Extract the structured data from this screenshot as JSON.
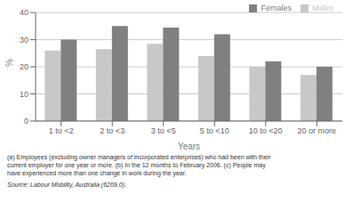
{
  "chart_data": {
    "type": "bar",
    "categories": [
      "1 to <2",
      "2 to <3",
      "3 to <5",
      "5 to <10",
      "10 to <20",
      "20 or more"
    ],
    "series": [
      {
        "name": "Males",
        "color": "#c8c8c8",
        "values": [
          26,
          26.5,
          28.5,
          24,
          20,
          17
        ]
      },
      {
        "name": "Females",
        "color": "#808080",
        "values": [
          30,
          35,
          34.5,
          32,
          22,
          20
        ]
      }
    ],
    "xlabel": "Years",
    "ylabel": "%",
    "ylim": [
      0,
      40
    ],
    "yticks": [
      0,
      10,
      20,
      30,
      40
    ],
    "grid": true,
    "legend": "upper right",
    "annotations": [
      "(a) Employees (excluding owner managers of incorporated enterprises) who had been with their",
      "current employer for one year or more. (b) In the 12 months to February 2006. (c) People may",
      "have experienced more than one change in work during the year."
    ],
    "source": "Source: Labour Mobility, Australia (6209.0)."
  }
}
